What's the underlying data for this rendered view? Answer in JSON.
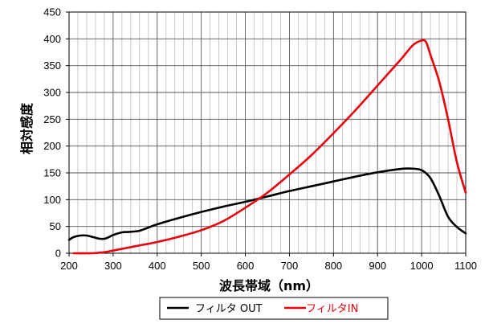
{
  "chart_data": {
    "type": "line",
    "xlabel": "波長帯域（nm）",
    "ylabel": "相対感度",
    "xlim": [
      200,
      1100
    ],
    "ylim": [
      0,
      450
    ],
    "x_ticks": [
      200,
      300,
      400,
      500,
      600,
      700,
      800,
      900,
      1000,
      1100
    ],
    "y_ticks": [
      0,
      50,
      100,
      150,
      200,
      250,
      300,
      350,
      400,
      450
    ],
    "x_minor_step": 20,
    "grid": true,
    "legend_position": "bottom-center",
    "series": [
      {
        "name": "フィルタ OUT",
        "color": "#000000",
        "x": [
          200,
          210,
          225,
          240,
          255,
          270,
          280,
          290,
          300,
          320,
          340,
          360,
          380,
          400,
          450,
          500,
          550,
          600,
          650,
          700,
          750,
          800,
          850,
          900,
          950,
          975,
          1000,
          1020,
          1040,
          1060,
          1080,
          1100
        ],
        "y": [
          25,
          30,
          33,
          33,
          30,
          27,
          27,
          30,
          34,
          39,
          40,
          42,
          48,
          54,
          66,
          77,
          87,
          96,
          106,
          116,
          125,
          134,
          143,
          151,
          157,
          158,
          155,
          140,
          107,
          68,
          49,
          37
        ]
      },
      {
        "name": "フィルタIN",
        "color": "#e8000b",
        "x": [
          210,
          250,
          280,
          300,
          350,
          400,
          450,
          500,
          550,
          600,
          650,
          700,
          750,
          800,
          850,
          900,
          950,
          980,
          1000,
          1010,
          1020,
          1040,
          1060,
          1080,
          1100
        ],
        "y": [
          0,
          0,
          2,
          5,
          13,
          21,
          31,
          43,
          60,
          85,
          113,
          147,
          183,
          224,
          267,
          313,
          359,
          388,
          397,
          394,
          370,
          320,
          250,
          170,
          113
        ]
      }
    ]
  }
}
